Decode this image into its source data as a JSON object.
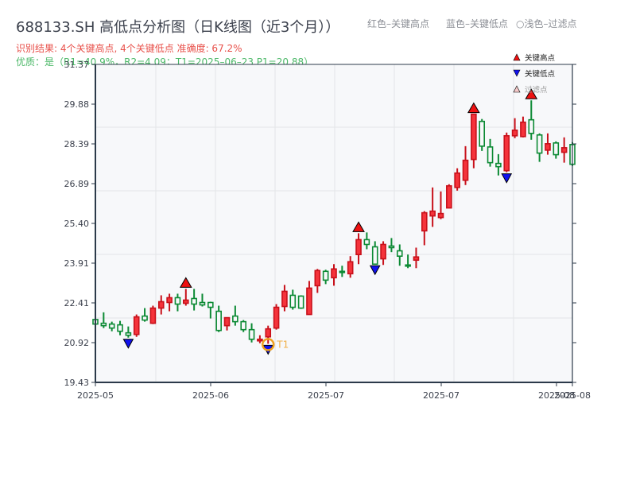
{
  "header": {
    "title": "688133.SH 高低点分析图（日K线图（近3个月））",
    "legend_red": "红色–关键高点",
    "legend_blue": "蓝色–关键低点",
    "legend_light": "○浅色–过滤点",
    "result_line": "识别结果: 4个关键高点, 4个关键低点   准确度: 67.2%",
    "quality_line": "优质：是（R1=40.9%，R2=4.09；T1=2025–06–23 P1=20.88）"
  },
  "legend": {
    "items": [
      {
        "label": "关键高点",
        "symbol": "triangle-up",
        "color": "#ee1111"
      },
      {
        "label": "关键低点",
        "symbol": "triangle-down",
        "color": "#1111ee"
      },
      {
        "label": "过滤点",
        "symbol": "triangle-up-light",
        "color": "#f6c9c9"
      }
    ]
  },
  "colors": {
    "up": "#f5333b",
    "up_edge": "#c8101a",
    "down": "#0c8a34",
    "plot_bg": "#f7f8fa",
    "grid": "#e3e5e8",
    "axis": "#2c3a4a",
    "t1_ring": "#f0a020"
  },
  "chart_data": {
    "type": "candlestick",
    "title": "688133.SH 高低点分析图（日K线图（近3个月））",
    "xlabel": "",
    "ylabel": "",
    "ylim": [
      19.43,
      31.37
    ],
    "yticks": [
      "31.37",
      "29.88",
      "28.39",
      "26.89",
      "25.40",
      "23.91",
      "22.41",
      "20.92",
      "19.43"
    ],
    "xticks": [
      "2025-05",
      "2025-06",
      "2025-07",
      "2025-07",
      "2025-08",
      "2025-08"
    ],
    "candles": [
      {
        "o": 21.79,
        "c": 21.62,
        "h": 21.82,
        "l": 21.58
      },
      {
        "o": 21.65,
        "c": 21.56,
        "h": 22.06,
        "l": 21.47
      },
      {
        "o": 21.62,
        "c": 21.47,
        "h": 21.71,
        "l": 21.35
      },
      {
        "o": 21.59,
        "c": 21.35,
        "h": 21.74,
        "l": 21.2
      },
      {
        "o": 21.29,
        "c": 21.2,
        "h": 21.53,
        "l": 21.11
      },
      {
        "o": 21.23,
        "c": 21.89,
        "h": 21.98,
        "l": 21.14
      },
      {
        "o": 21.92,
        "c": 21.77,
        "h": 22.22,
        "l": 21.71
      },
      {
        "o": 21.65,
        "c": 22.22,
        "h": 22.31,
        "l": 21.62
      },
      {
        "o": 22.22,
        "c": 22.46,
        "h": 22.7,
        "l": 21.98
      },
      {
        "o": 22.43,
        "c": 22.61,
        "h": 22.76,
        "l": 22.1
      },
      {
        "o": 22.61,
        "c": 22.37,
        "h": 22.76,
        "l": 22.1
      },
      {
        "o": 22.4,
        "c": 22.52,
        "h": 22.94,
        "l": 22.31
      },
      {
        "o": 22.58,
        "c": 22.37,
        "h": 22.94,
        "l": 22.13
      },
      {
        "o": 22.43,
        "c": 22.34,
        "h": 22.76,
        "l": 22.28
      },
      {
        "o": 22.43,
        "c": 22.25,
        "h": 22.46,
        "l": 21.83
      },
      {
        "o": 22.1,
        "c": 21.38,
        "h": 22.31,
        "l": 21.32
      },
      {
        "o": 21.56,
        "c": 21.86,
        "h": 21.86,
        "l": 21.38
      },
      {
        "o": 21.92,
        "c": 21.71,
        "h": 22.31,
        "l": 21.56
      },
      {
        "o": 21.71,
        "c": 21.41,
        "h": 21.77,
        "l": 21.32
      },
      {
        "o": 21.41,
        "c": 21.05,
        "h": 21.65,
        "l": 20.93
      },
      {
        "o": 20.99,
        "c": 21.05,
        "h": 21.2,
        "l": 20.9
      },
      {
        "o": 21.14,
        "c": 21.44,
        "h": 21.56,
        "l": 20.88
      },
      {
        "o": 21.47,
        "c": 22.25,
        "h": 22.37,
        "l": 21.41
      },
      {
        "o": 22.28,
        "c": 22.85,
        "h": 23.09,
        "l": 22.1
      },
      {
        "o": 22.7,
        "c": 22.25,
        "h": 22.91,
        "l": 22.16
      },
      {
        "o": 22.67,
        "c": 22.22,
        "h": 22.7,
        "l": 22.19
      },
      {
        "o": 21.98,
        "c": 22.97,
        "h": 23.24,
        "l": 21.98
      },
      {
        "o": 23.06,
        "c": 23.63,
        "h": 23.69,
        "l": 22.79
      },
      {
        "o": 23.6,
        "c": 23.27,
        "h": 23.66,
        "l": 23.12
      },
      {
        "o": 23.36,
        "c": 23.69,
        "h": 23.87,
        "l": 23.06
      },
      {
        "o": 23.6,
        "c": 23.57,
        "h": 23.81,
        "l": 23.39
      },
      {
        "o": 23.51,
        "c": 23.96,
        "h": 24.17,
        "l": 23.36
      },
      {
        "o": 24.23,
        "c": 24.79,
        "h": 25.03,
        "l": 23.87
      },
      {
        "o": 24.79,
        "c": 24.61,
        "h": 25.06,
        "l": 24.43
      },
      {
        "o": 24.52,
        "c": 23.87,
        "h": 24.73,
        "l": 23.87
      },
      {
        "o": 24.07,
        "c": 24.61,
        "h": 24.73,
        "l": 23.84
      },
      {
        "o": 24.55,
        "c": 24.49,
        "h": 24.85,
        "l": 24.32
      },
      {
        "o": 24.37,
        "c": 24.17,
        "h": 24.61,
        "l": 23.81
      },
      {
        "o": 23.84,
        "c": 23.81,
        "h": 24.23,
        "l": 23.72
      },
      {
        "o": 24.02,
        "c": 24.14,
        "h": 24.49,
        "l": 23.72
      },
      {
        "o": 25.12,
        "c": 25.8,
        "h": 25.86,
        "l": 24.58
      },
      {
        "o": 25.68,
        "c": 25.86,
        "h": 26.75,
        "l": 25.27
      },
      {
        "o": 25.62,
        "c": 25.77,
        "h": 26.6,
        "l": 25.56
      },
      {
        "o": 25.98,
        "c": 26.81,
        "h": 26.87,
        "l": 25.98
      },
      {
        "o": 26.75,
        "c": 27.29,
        "h": 27.47,
        "l": 26.63
      },
      {
        "o": 27.02,
        "c": 27.77,
        "h": 28.3,
        "l": 26.84
      },
      {
        "o": 27.8,
        "c": 29.5,
        "h": 29.5,
        "l": 27.47
      },
      {
        "o": 29.23,
        "c": 28.3,
        "h": 29.32,
        "l": 28.12
      },
      {
        "o": 28.27,
        "c": 27.68,
        "h": 28.57,
        "l": 27.53
      },
      {
        "o": 27.65,
        "c": 27.53,
        "h": 28.0,
        "l": 27.2
      },
      {
        "o": 27.38,
        "c": 28.69,
        "h": 28.81,
        "l": 27.32
      },
      {
        "o": 28.69,
        "c": 28.9,
        "h": 29.35,
        "l": 28.6
      },
      {
        "o": 28.66,
        "c": 29.2,
        "h": 29.41,
        "l": 28.63
      },
      {
        "o": 29.29,
        "c": 28.78,
        "h": 30.02,
        "l": 28.54
      },
      {
        "o": 28.72,
        "c": 28.04,
        "h": 28.78,
        "l": 27.71
      },
      {
        "o": 28.15,
        "c": 28.39,
        "h": 28.78,
        "l": 27.98
      },
      {
        "o": 28.42,
        "c": 27.98,
        "h": 28.48,
        "l": 27.83
      },
      {
        "o": 28.07,
        "c": 28.24,
        "h": 28.63,
        "l": 27.68
      },
      {
        "o": 28.36,
        "c": 27.62,
        "h": 28.45,
        "l": 27.56
      }
    ],
    "key_highs": [
      {
        "index": 11,
        "price": 22.94
      },
      {
        "index": 32,
        "price": 25.03
      },
      {
        "index": 46,
        "price": 29.5
      },
      {
        "index": 53,
        "price": 30.02
      }
    ],
    "key_lows": [
      {
        "index": 4,
        "price": 21.11
      },
      {
        "index": 21,
        "price": 20.88
      },
      {
        "index": 34,
        "price": 23.87
      },
      {
        "index": 50,
        "price": 27.32
      }
    ],
    "annotations": [
      {
        "label": "T1",
        "index": 21,
        "price": 20.88,
        "date": "2025-06-23"
      }
    ],
    "legend_position": "upper right",
    "grid": true
  },
  "annotation": {
    "t1_label": "T1"
  }
}
